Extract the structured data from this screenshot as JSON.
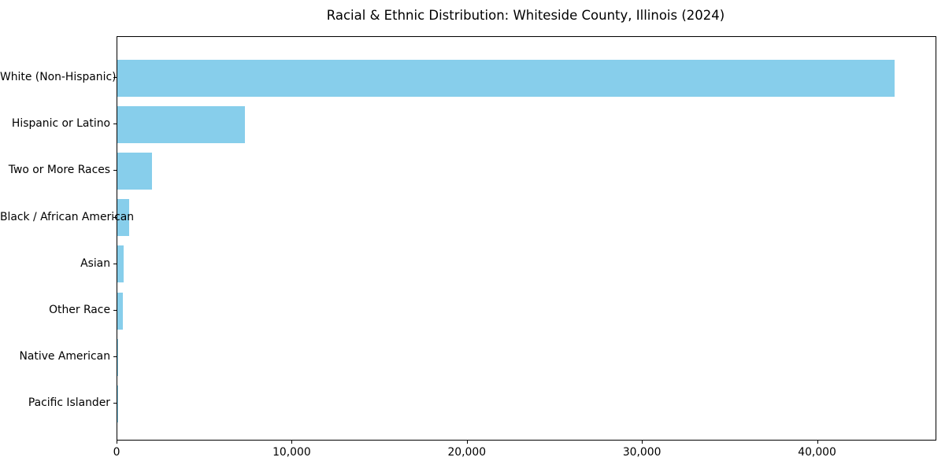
{
  "chart_data": {
    "type": "bar",
    "orientation": "horizontal",
    "title": "Racial & Ethnic Distribution: Whiteside County, Illinois (2024)",
    "categories": [
      "White (Non-Hispanic)",
      "Hispanic or Latino",
      "Two or More Races",
      "Black / African American",
      "Asian",
      "Other Race",
      "Native American",
      "Pacific Islander"
    ],
    "values": [
      44400,
      7300,
      2000,
      680,
      350,
      300,
      20,
      10
    ],
    "bar_color": "#87ceeb",
    "xlabel": "",
    "ylabel": "",
    "xlim": [
      0,
      46720
    ],
    "xticks": [
      0,
      10000,
      20000,
      30000,
      40000
    ],
    "xtick_labels": [
      "0",
      "10,000",
      "20,000",
      "30,000",
      "40,000"
    ],
    "grid": false,
    "legend": null,
    "frame": true,
    "background_color": "#ffffff",
    "text_color": "#000000"
  }
}
